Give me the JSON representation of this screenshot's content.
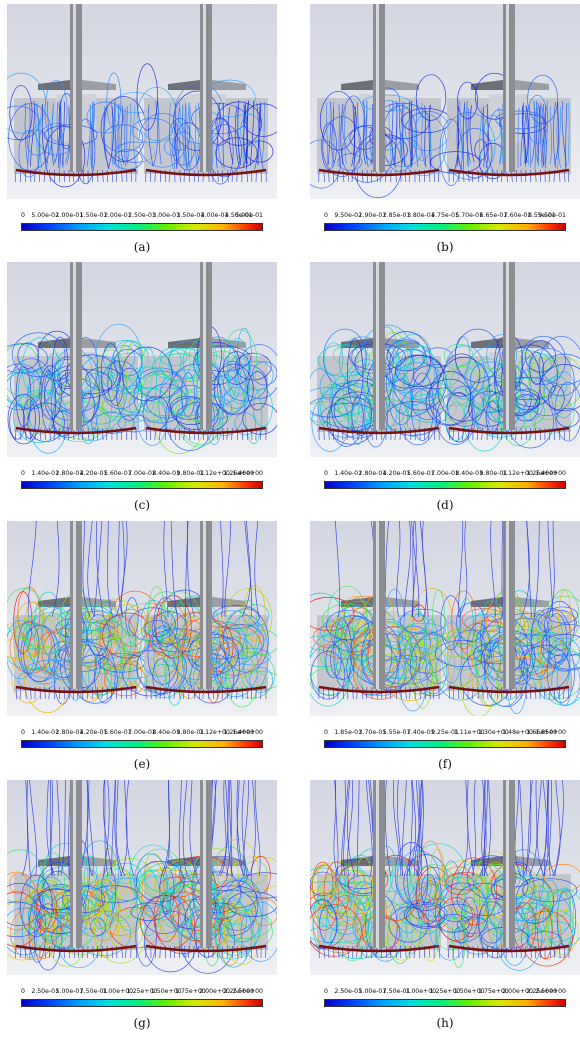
{
  "panels": [
    {
      "caption": "(a)",
      "ticks": [
        "0",
        "5.00e-02",
        "1.00e-01",
        "1.50e-01",
        "2.00e-01",
        "2.50e-01",
        "3.00e-01",
        "3.50e-01",
        "4.00e-01",
        "4.50e-01",
        "5.00e-01"
      ],
      "style": "low"
    },
    {
      "caption": "(b)",
      "ticks": [
        "0",
        "9.50e-02",
        "1.90e-01",
        "2.85e-01",
        "3.80e-01",
        "4.75e-01",
        "5.70e-01",
        "6.65e-01",
        "7.60e-01",
        "8.55e-01",
        "9.50e-01"
      ],
      "style": "low"
    },
    {
      "caption": "(c)",
      "ticks": [
        "0",
        "1.40e-01",
        "2.80e-01",
        "4.20e-01",
        "5.60e-01",
        "7.00e-01",
        "8.40e-01",
        "9.80e-01",
        "1.12e+00",
        "1.26e+00",
        "1.40e+00"
      ],
      "style": "mid"
    },
    {
      "caption": "(d)",
      "ticks": [
        "0",
        "1.40e-01",
        "2.80e-01",
        "4.20e-01",
        "5.60e-01",
        "7.00e-01",
        "8.40e-01",
        "9.80e-01",
        "1.12e+00",
        "1.26e+00",
        "1.40e+00"
      ],
      "style": "mid"
    },
    {
      "caption": "(e)",
      "ticks": [
        "0",
        "1.40e-01",
        "2.80e-01",
        "4.20e-01",
        "5.60e-01",
        "7.00e-01",
        "8.40e-01",
        "9.80e-01",
        "1.12e+00",
        "1.26e+00",
        "1.40e+00"
      ],
      "style": "high"
    },
    {
      "caption": "(f)",
      "ticks": [
        "0",
        "1.85e-01",
        "3.70e-01",
        "5.55e-01",
        "7.40e-01",
        "9.25e-01",
        "1.11e+00",
        "1.30e+00",
        "1.48e+00",
        "1.66e+00",
        "1.85e+00"
      ],
      "style": "high"
    },
    {
      "caption": "(g)",
      "ticks": [
        "0",
        "2.50e-01",
        "5.00e-01",
        "7.50e-01",
        "1.00e+00",
        "1.25e+00",
        "1.50e+00",
        "1.75e+00",
        "2.00e+00",
        "2.25e+00",
        "2.50e+00"
      ],
      "style": "vhigh"
    },
    {
      "caption": "(h)",
      "ticks": [
        "0",
        "2.50e-01",
        "5.00e-01",
        "7.50e-01",
        "1.00e+00",
        "1.25e+00",
        "1.50e+00",
        "1.75e+00",
        "2.00e+00",
        "2.25e+00",
        "2.50e+00"
      ],
      "style": "vhigh"
    }
  ]
}
